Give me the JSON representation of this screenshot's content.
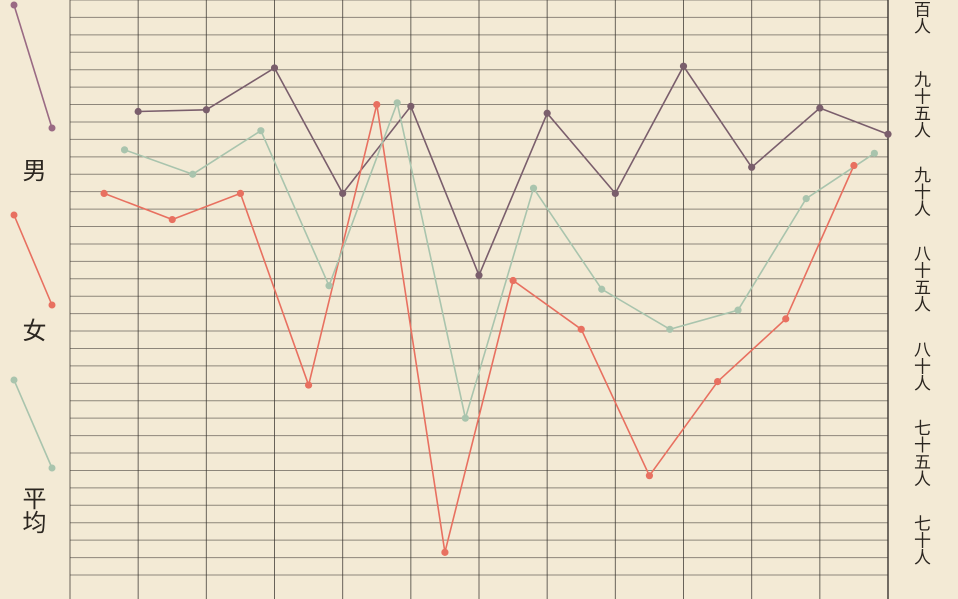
{
  "chart_data": {
    "type": "line",
    "title": "",
    "xlabel": "",
    "ylabel": "",
    "ylim": [
      68,
      101
    ],
    "y_ticks": [
      {
        "value": 100,
        "label": "百人"
      },
      {
        "value": 95,
        "label": "九十五人"
      },
      {
        "value": 90,
        "label": "九十人"
      },
      {
        "value": 85,
        "label": "八十五人"
      },
      {
        "value": 80,
        "label": "八十人"
      },
      {
        "value": 75,
        "label": "七十五人"
      },
      {
        "value": 70,
        "label": "七十人"
      }
    ],
    "grid": true,
    "legend_position": "left",
    "series": [
      {
        "name": "男",
        "color": "#7a5e6c",
        "points": [
          [
            1,
            94.6
          ],
          [
            2,
            94.7
          ],
          [
            3,
            97.1
          ],
          [
            4,
            89.9
          ],
          [
            5,
            94.9
          ],
          [
            6,
            85.2
          ],
          [
            7,
            94.5
          ],
          [
            8,
            89.9
          ],
          [
            9,
            97.2
          ],
          [
            10,
            91.4
          ],
          [
            11,
            94.8
          ],
          [
            12,
            93.3
          ]
        ]
      },
      {
        "name": "女",
        "color": "#e87060",
        "points": [
          [
            0.5,
            89.9
          ],
          [
            1.5,
            88.4
          ],
          [
            2.5,
            89.9
          ],
          [
            3.5,
            78.9
          ],
          [
            4.5,
            95.0
          ],
          [
            5.5,
            69.3
          ],
          [
            6.5,
            84.9
          ],
          [
            7.5,
            82.1
          ],
          [
            8.5,
            73.7
          ],
          [
            9.5,
            79.1
          ],
          [
            10.5,
            82.7
          ],
          [
            11.5,
            91.5
          ]
        ]
      },
      {
        "name": "平均",
        "color": "#a9c4ad",
        "points": [
          [
            0.8,
            92.4
          ],
          [
            1.8,
            91.0
          ],
          [
            2.8,
            93.5
          ],
          [
            3.8,
            84.6
          ],
          [
            4.8,
            95.1
          ],
          [
            5.8,
            77.0
          ],
          [
            6.8,
            90.2
          ],
          [
            7.8,
            84.4
          ],
          [
            8.8,
            82.1
          ],
          [
            9.8,
            83.2
          ],
          [
            10.8,
            89.6
          ],
          [
            11.8,
            92.2
          ]
        ]
      }
    ]
  },
  "legend": [
    {
      "name": "男",
      "color": "#9a6a84"
    },
    {
      "name": "女",
      "color": "#e87060"
    },
    {
      "name": "平均",
      "color": "#a9c4ad"
    }
  ],
  "colors": {
    "paper": "#f3ead5",
    "grid": "#3a3530"
  }
}
